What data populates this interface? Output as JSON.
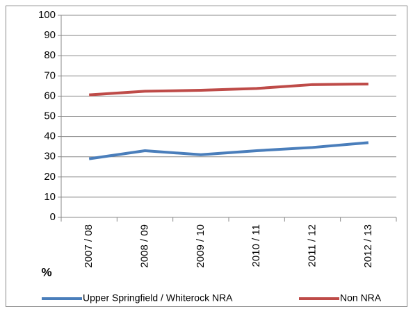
{
  "chart_data": {
    "type": "line",
    "y_label": "%",
    "categories": [
      "2007 / 08",
      "2008 / 09",
      "2009 / 10",
      "2010 / 11",
      "2011 / 12",
      "2012 / 13"
    ],
    "series": [
      {
        "name": "Upper Springfield / Whiterock NRA",
        "color": "#4a7ebb",
        "values": [
          29,
          33,
          31,
          33,
          34.6,
          37
        ]
      },
      {
        "name": "Non NRA",
        "color": "#be4b48",
        "values": [
          60.6,
          62.4,
          62.9,
          63.8,
          65.7,
          66
        ]
      }
    ],
    "ylim": [
      0,
      100
    ],
    "yticks": [
      0,
      10,
      20,
      30,
      40,
      50,
      60,
      70,
      80,
      90,
      100
    ],
    "grid": true
  }
}
